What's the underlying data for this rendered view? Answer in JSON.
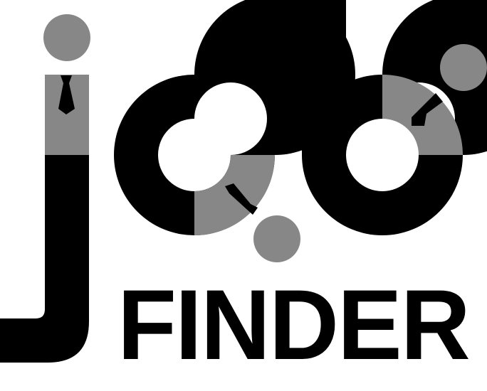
{
  "logo": {
    "wordmark": "job",
    "subtitle": "FINDER",
    "colors": {
      "primary": "#000000",
      "accent": "#878787",
      "background": "#ffffff"
    }
  }
}
